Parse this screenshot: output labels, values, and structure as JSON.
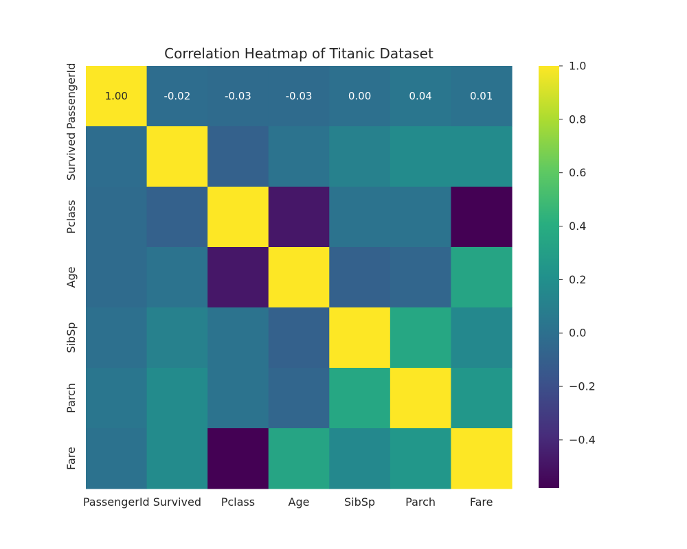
{
  "chart_data": {
    "type": "heatmap",
    "title": "Correlation Heatmap of Titanic Dataset",
    "xlabel": "",
    "ylabel": "",
    "row_labels": [
      "PassengerId",
      "Survived",
      "Pclass",
      "Age",
      "SibSp",
      "Parch",
      "Fare"
    ],
    "col_labels": [
      "PassengerId",
      "Survived",
      "Pclass",
      "Age",
      "SibSp",
      "Parch",
      "Fare"
    ],
    "values": [
      [
        1.0,
        -0.02,
        -0.03,
        -0.03,
        0.0,
        0.04,
        0.01
      ],
      [
        -0.02,
        1.0,
        -0.09,
        0.02,
        0.11,
        0.17,
        0.17
      ],
      [
        -0.03,
        -0.09,
        1.0,
        -0.48,
        0.02,
        0.02,
        -0.58
      ],
      [
        -0.03,
        0.02,
        -0.48,
        1.0,
        -0.09,
        -0.06,
        0.34
      ],
      [
        0.0,
        0.11,
        0.02,
        -0.09,
        1.0,
        0.36,
        0.15
      ],
      [
        0.04,
        0.17,
        0.02,
        -0.06,
        0.36,
        1.0,
        0.25
      ],
      [
        0.01,
        0.17,
        -0.58,
        0.34,
        0.15,
        0.25,
        1.0
      ]
    ],
    "annotated_rows": [
      0
    ],
    "annotation_format": "2dp",
    "colormap": "viridis",
    "colorbar": {
      "min": -0.58,
      "max": 1.0,
      "ticks": [
        1.0,
        0.8,
        0.6,
        0.4,
        0.2,
        0.0,
        -0.2,
        -0.4
      ],
      "tick_labels": [
        "1.0",
        "0.8",
        "0.6",
        "0.4",
        "0.2",
        "0.0",
        "−0.2",
        "−0.4"
      ]
    },
    "grid": false,
    "legend": "colorbar-right"
  }
}
